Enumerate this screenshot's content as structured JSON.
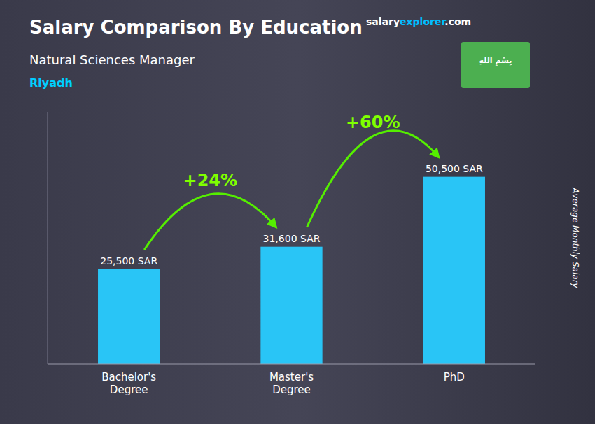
{
  "chart_data": {
    "type": "bar",
    "title": "Salary Comparison By Education",
    "subtitle": [
      "Natural Sciences Manager",
      "Riyadh"
    ],
    "ylabel": "Average Monthly Salary",
    "watermark": [
      "salary",
      "explorer",
      ".com"
    ],
    "flag": [
      "بِسْمِ اللهِ",
      "——"
    ],
    "categories": [
      "Bachelor's\nDegree",
      "Master's\nDegree",
      "PhD"
    ],
    "values": [
      25500,
      31600,
      50500
    ],
    "value_labels": [
      "25,500 SAR",
      "31,600 SAR",
      "50,500 SAR"
    ],
    "data_labels": true,
    "annotations": [
      "+24%",
      "+60%"
    ],
    "color": "#29C5F6",
    "ylim": [
      0,
      68000
    ],
    "yticks": [],
    "tick_labels": "x",
    "grid": false
  }
}
